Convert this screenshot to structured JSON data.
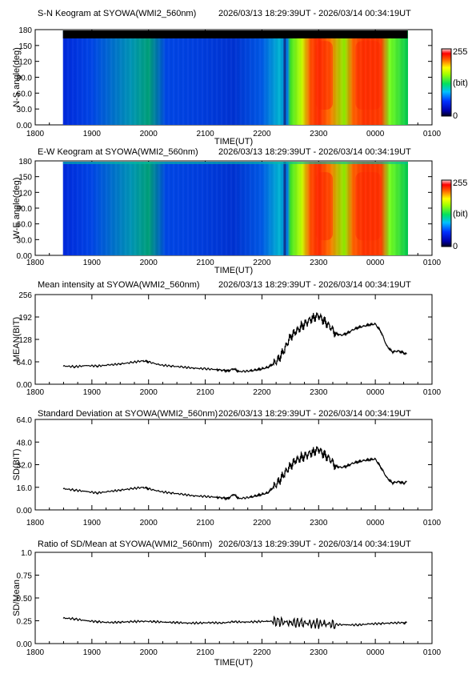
{
  "x_ticks": [
    "1800",
    "1900",
    "2000",
    "2100",
    "2200",
    "2300",
    "0000",
    "0100"
  ],
  "time_label": "TIME(UT)",
  "colorbar": {
    "max": "255",
    "unit": "(bit)",
    "min": "0"
  },
  "chart_data": [
    {
      "type": "heatmap",
      "title": "S-N Keogram at SYOWA(WMI2_560nm)",
      "time_range": "2026/03/13 18:29:39UT - 2026/03/14 00:34:19UT",
      "ylabel": "N-S angle(deg)",
      "xlabel": "TIME(UT)",
      "yticks": [
        "0.00",
        "30.0",
        "60.0",
        "90.0",
        "120",
        "150",
        "180"
      ],
      "ylim": [
        0,
        180
      ],
      "xlim_hours": [
        18,
        25
      ],
      "data_start_hours": 18.49,
      "data_end_hours": 24.57,
      "colorbar_range": [
        0,
        255
      ],
      "top_band_black": true
    },
    {
      "type": "heatmap",
      "title": "E-W Keogram at SYOWA(WMI2_560nm)",
      "time_range": "2026/03/13 18:29:39UT - 2026/03/14 00:34:19UT",
      "ylabel": "W-E angle(deg)",
      "xlabel": "TIME(UT)",
      "yticks": [
        "0.00",
        "30.0",
        "60.0",
        "90.0",
        "120",
        "150",
        "180"
      ],
      "ylim": [
        0,
        180
      ],
      "xlim_hours": [
        18,
        25
      ],
      "data_start_hours": 18.49,
      "data_end_hours": 24.57,
      "colorbar_range": [
        0,
        255
      ],
      "top_band_black": false
    },
    {
      "type": "line",
      "title": "Mean intensity at SYOWA(WMI2_560nm)",
      "time_range": "2026/03/13 18:29:39UT - 2026/03/14 00:34:19UT",
      "ylabel": "MEAN(BIT)",
      "xlabel": "",
      "yticks": [
        "0.00",
        "64.0",
        "128",
        "192",
        "256"
      ],
      "ylim": [
        0,
        256
      ],
      "xlim_hours": [
        18,
        25
      ],
      "series": [
        {
          "x": [
            18.5,
            18.7,
            18.9,
            19.1,
            19.3,
            19.5,
            19.7,
            19.9,
            20.0,
            20.2,
            20.4,
            20.6,
            20.8,
            21.0,
            21.2,
            21.3,
            21.4,
            21.5,
            21.6,
            21.8,
            21.9,
            22.0,
            22.1,
            22.2,
            22.3,
            22.4,
            22.5,
            22.6,
            22.7,
            22.8,
            22.9,
            23.0,
            23.1,
            23.2,
            23.3,
            23.4,
            23.5,
            23.6,
            23.7,
            23.8,
            23.9,
            24.0,
            24.1,
            24.2,
            24.3,
            24.4,
            24.5,
            24.55
          ],
          "y": [
            52,
            50,
            53,
            52,
            55,
            58,
            62,
            67,
            64,
            55,
            52,
            49,
            46,
            44,
            42,
            40,
            38,
            44,
            36,
            38,
            41,
            44,
            48,
            58,
            72,
            100,
            135,
            150,
            165,
            178,
            190,
            196,
            180,
            165,
            145,
            140,
            145,
            155,
            162,
            166,
            170,
            172,
            150,
            110,
            92,
            95,
            90,
            87
          ]
        }
      ]
    },
    {
      "type": "line",
      "title": "Standard Deviation at SYOWA(WMI2_560nm)",
      "time_range": "2026/03/13 18:29:39UT - 2026/03/14 00:34:19UT",
      "ylabel": "SD(BIT)",
      "xlabel": "",
      "yticks": [
        "0.00",
        "16.0",
        "32.0",
        "48.0",
        "64.0"
      ],
      "ylim": [
        0,
        64
      ],
      "xlim_hours": [
        18,
        25
      ],
      "series": [
        {
          "x": [
            18.5,
            18.7,
            18.9,
            19.1,
            19.3,
            19.5,
            19.7,
            19.9,
            20.0,
            20.2,
            20.4,
            20.6,
            20.8,
            21.0,
            21.2,
            21.3,
            21.4,
            21.5,
            21.6,
            21.8,
            21.9,
            22.0,
            22.1,
            22.2,
            22.3,
            22.4,
            22.5,
            22.6,
            22.7,
            22.8,
            22.9,
            23.0,
            23.1,
            23.2,
            23.3,
            23.4,
            23.5,
            23.6,
            23.7,
            23.8,
            23.9,
            24.0,
            24.1,
            24.2,
            24.3,
            24.4,
            24.5,
            24.55
          ],
          "y": [
            15,
            14,
            13,
            12,
            13,
            14,
            15,
            16,
            15,
            13,
            12,
            11,
            10,
            9.5,
            9,
            8.5,
            8,
            11,
            8,
            9,
            10,
            11,
            12,
            16,
            20,
            26,
            31,
            35,
            37,
            39,
            41,
            43,
            39,
            36,
            31,
            30,
            31,
            33,
            34,
            35,
            35.5,
            36,
            30,
            23,
            19,
            20,
            19,
            20
          ]
        }
      ]
    },
    {
      "type": "line",
      "title": "Ratio of SD/Mean at SYOWA(WMI2_560nm)",
      "time_range": "2026/03/13 18:29:39UT - 2026/03/14 00:34:19UT",
      "ylabel": "SD/Mean",
      "xlabel": "TIME(UT)",
      "yticks": [
        "0.00",
        "0.25",
        "0.50",
        "0.75",
        "1.0"
      ],
      "ylim": [
        0,
        1
      ],
      "xlim_hours": [
        18,
        25
      ],
      "series": [
        {
          "x": [
            18.5,
            18.7,
            18.9,
            19.1,
            19.3,
            19.5,
            19.7,
            19.9,
            20.1,
            20.3,
            20.5,
            20.7,
            20.9,
            21.1,
            21.3,
            21.5,
            21.7,
            21.9,
            22.1,
            22.3,
            22.5,
            22.7,
            22.9,
            23.1,
            23.3,
            23.5,
            23.7,
            23.9,
            24.1,
            24.3,
            24.5,
            24.55
          ],
          "y": [
            0.28,
            0.27,
            0.25,
            0.24,
            0.23,
            0.235,
            0.24,
            0.245,
            0.24,
            0.235,
            0.23,
            0.225,
            0.225,
            0.23,
            0.225,
            0.24,
            0.235,
            0.24,
            0.245,
            0.24,
            0.23,
            0.225,
            0.22,
            0.215,
            0.21,
            0.205,
            0.205,
            0.215,
            0.22,
            0.225,
            0.23,
            0.232
          ]
        }
      ]
    }
  ]
}
